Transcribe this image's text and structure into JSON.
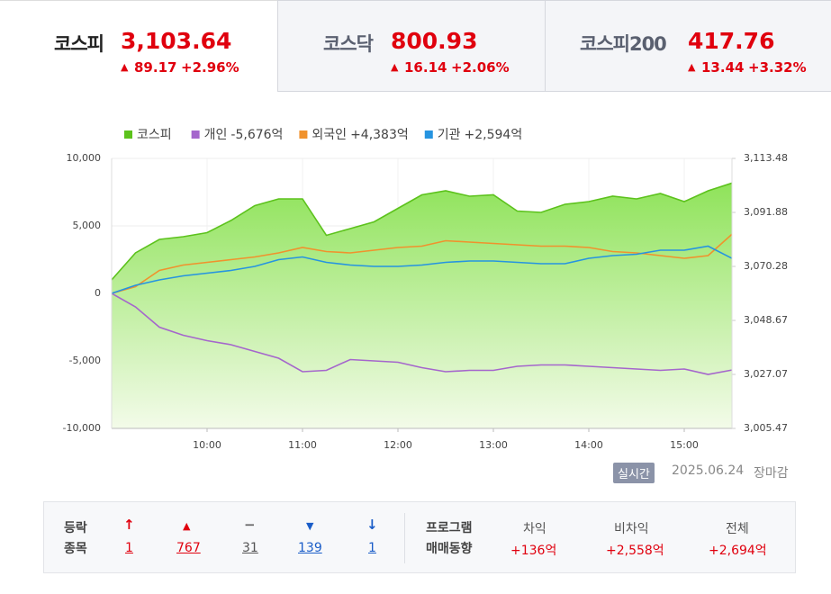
{
  "tabs": [
    {
      "name": "코스피",
      "value": "3,103.64",
      "change": "89.17",
      "rate": "+2.96%"
    },
    {
      "name": "코스닥",
      "value": "800.93",
      "change": "16.14",
      "rate": "+2.06%"
    },
    {
      "name": "코스피200",
      "value": "417.76",
      "change": "13.44",
      "rate": "+3.32%"
    }
  ],
  "chart_data": {
    "type": "line",
    "x": [
      9,
      9.25,
      9.5,
      9.75,
      10,
      10.25,
      10.5,
      10.75,
      11,
      11.25,
      11.5,
      11.75,
      12,
      12.25,
      12.5,
      12.75,
      13,
      13.25,
      13.5,
      13.75,
      14,
      14.25,
      14.5,
      14.75,
      15,
      15.25,
      15.5
    ],
    "xlim": [
      9,
      15.5
    ],
    "xticks": [
      {
        "value": 10,
        "label": "10:00"
      },
      {
        "value": 11,
        "label": "11:00"
      },
      {
        "value": 12,
        "label": "12:00"
      },
      {
        "value": 13,
        "label": "13:00"
      },
      {
        "value": 14,
        "label": "14:00"
      },
      {
        "value": 15,
        "label": "15:00"
      }
    ],
    "ylim": [
      -10000,
      10000
    ],
    "yticks": [
      {
        "value": 10000,
        "label": "10,000"
      },
      {
        "value": 5000,
        "label": "5,000"
      },
      0,
      {
        "value": -5000,
        "label": "-5,000"
      },
      {
        "value": -10000,
        "label": "-10,000"
      }
    ],
    "y2lim": [
      3005.47,
      3113.48
    ],
    "y2ticks": [
      {
        "value": 3113.48,
        "label": "3,113.48"
      },
      {
        "value": 3091.88,
        "label": "3,091.88"
      },
      {
        "value": 3070.28,
        "label": "3,070.28"
      },
      {
        "value": 3048.67,
        "label": "3,048.67"
      },
      {
        "value": 3027.07,
        "label": "3,027.07"
      },
      {
        "value": 3005.47,
        "label": "3,005.47"
      }
    ],
    "grid": true,
    "series": [
      {
        "name": "코스피",
        "color": "#5cc21c",
        "axis": "y2",
        "values": [
          3064.88,
          3075.68,
          3081.08,
          3082.16,
          3083.78,
          3088.64,
          3094.58,
          3097.28,
          3097.28,
          3082.7,
          3085.4,
          3088.1,
          3093.5,
          3098.9,
          3100.52,
          3098.36,
          3098.9,
          3092.42,
          3091.88,
          3095.12,
          3096.2,
          3098.36,
          3097.28,
          3099.44,
          3096.2,
          3100.52,
          3103.6
        ]
      },
      {
        "name": "개인",
        "total": "-5,676억",
        "color": "#a566cc",
        "values": [
          0,
          -1000,
          -2500,
          -3100,
          -3500,
          -3800,
          -4300,
          -4800,
          -5800,
          -5700,
          -4900,
          -5000,
          -5100,
          -5500,
          -5800,
          -5700,
          -5700,
          -5400,
          -5300,
          -5300,
          -5400,
          -5500,
          -5600,
          -5700,
          -5600,
          -6000,
          -5676
        ]
      },
      {
        "name": "외국인",
        "total": "+4,383억",
        "color": "#f0922d",
        "values": [
          0,
          500,
          1700,
          2100,
          2300,
          2500,
          2700,
          3000,
          3400,
          3100,
          3000,
          3200,
          3400,
          3500,
          3900,
          3800,
          3700,
          3600,
          3500,
          3500,
          3400,
          3100,
          3000,
          2800,
          2600,
          2800,
          4383
        ]
      },
      {
        "name": "기관",
        "total": "+2,594억",
        "color": "#2694e0",
        "values": [
          0,
          600,
          1000,
          1300,
          1500,
          1700,
          2000,
          2500,
          2700,
          2300,
          2100,
          2000,
          2000,
          2100,
          2300,
          2400,
          2400,
          2300,
          2200,
          2200,
          2600,
          2800,
          2900,
          3200,
          3200,
          3500,
          2594
        ]
      }
    ]
  },
  "status": {
    "badge": "실시간",
    "date": "2025.06.24",
    "state": "장마감"
  },
  "breadth": {
    "label": [
      "등락",
      "종목"
    ],
    "items": [
      "1",
      "767",
      "31",
      "139",
      "1"
    ]
  },
  "program": {
    "label": [
      "프로그램",
      "매매동향"
    ],
    "columns": [
      {
        "name": "차익",
        "value": "+136억"
      },
      {
        "name": "비차익",
        "value": "+2,558억"
      },
      {
        "name": "전체",
        "value": "+2,694억"
      }
    ]
  }
}
